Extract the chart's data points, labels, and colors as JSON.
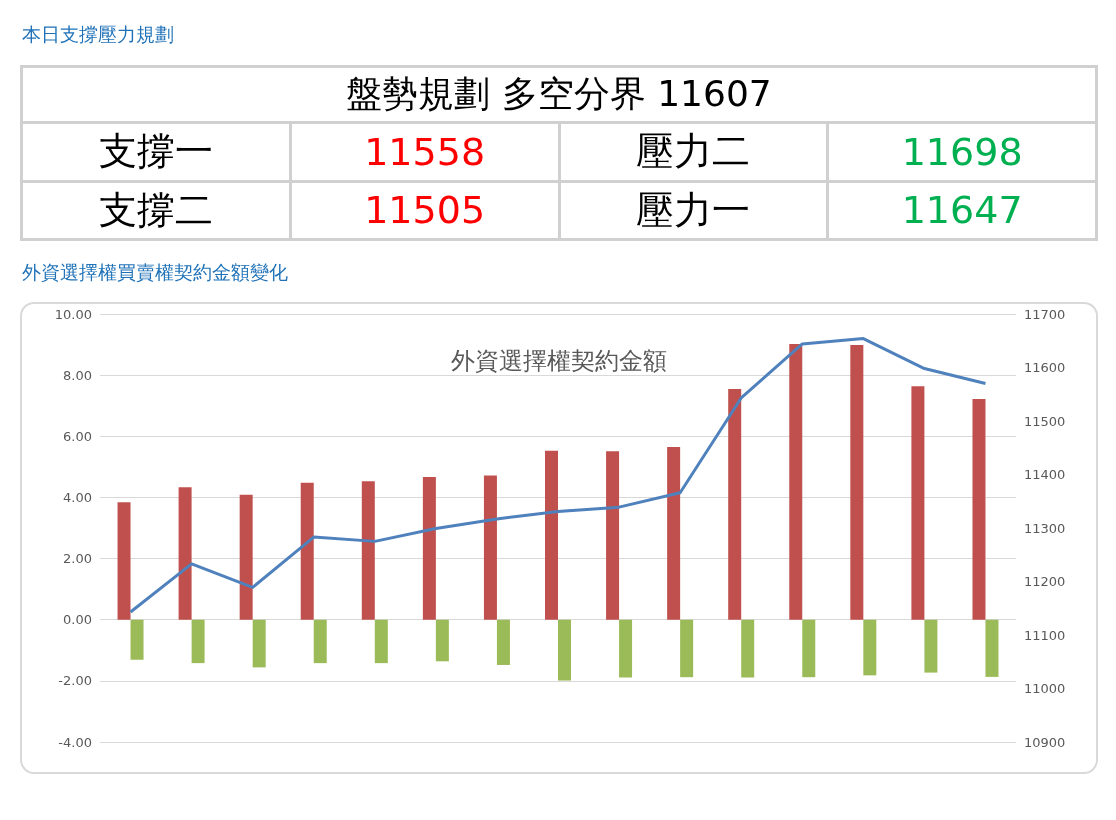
{
  "chart_data": [
    {
      "type": "other",
      "title": "本日支撐壓力規劃",
      "annotations": [
        "盤勢規劃 多空分界 11607",
        "支撐一",
        "11558",
        "壓力二",
        "11698",
        "支撐二",
        "11505",
        "壓力一",
        "11647"
      ]
    },
    {
      "type": "bar",
      "subtitle": "外資選擇權買賣權契約金額變化",
      "title": "外資選擇權契約金額",
      "categories": [
        null,
        null,
        null,
        null,
        null,
        null,
        null,
        null,
        null,
        null,
        null,
        null,
        null,
        null,
        null
      ],
      "series": [
        {
          "type": "bar",
          "color": "#c0504d",
          "values": [
            3.84,
            4.33,
            4.09,
            4.48,
            4.53,
            4.67,
            4.72,
            5.53,
            5.51,
            5.65,
            7.55,
            9.02,
            8.99,
            7.64,
            7.22
          ]
        },
        {
          "type": "bar",
          "color": "#9bbb59",
          "values": [
            -1.31,
            -1.42,
            -1.56,
            -1.42,
            -1.42,
            -1.36,
            -1.48,
            -1.99,
            -1.89,
            -1.88,
            -1.89,
            -1.88,
            -1.82,
            -1.73,
            -1.87
          ]
        },
        {
          "type": "line",
          "axis": "y2",
          "color": "#4f81bd",
          "values": [
            11143,
            11233,
            11189,
            11283,
            11275,
            11299,
            11317,
            11331,
            11339,
            11366,
            11543,
            11644,
            11654,
            11598,
            11570
          ]
        }
      ],
      "ylim": [
        -4,
        10
      ],
      "yticks": [
        {
          "value": -4,
          "label": "-4.00"
        },
        {
          "value": -2,
          "label": "-2.00"
        },
        {
          "value": 0,
          "label": "0.00"
        },
        {
          "value": 2,
          "label": "2.00"
        },
        {
          "value": 4,
          "label": "4.00"
        },
        {
          "value": 6,
          "label": "6.00"
        },
        {
          "value": 8,
          "label": "8.00"
        },
        {
          "value": 10,
          "label": "10.00"
        }
      ],
      "y2lim": [
        10900,
        11700
      ],
      "y2ticks": [
        10900,
        11000,
        11100,
        11200,
        11300,
        11400,
        11500,
        11600,
        11700
      ],
      "grid": "y",
      "marker": "none"
    }
  ]
}
